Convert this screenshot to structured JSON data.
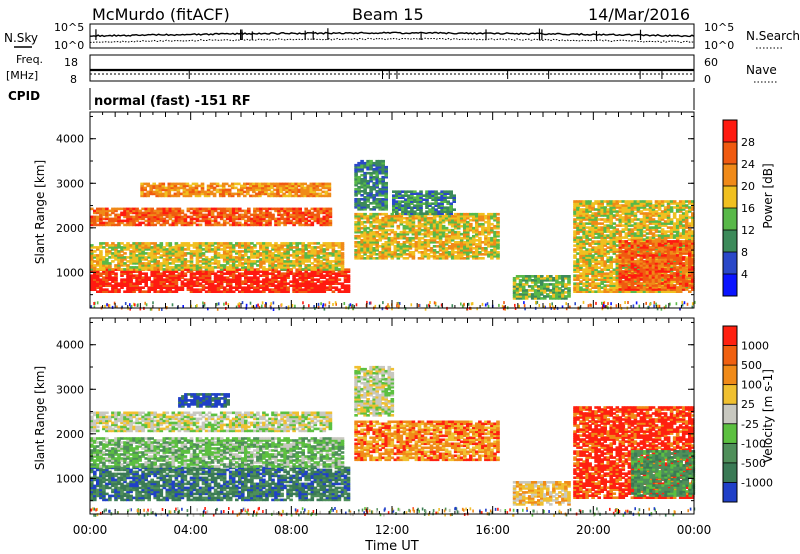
{
  "header": {
    "station": "McMurdo (fitACF)",
    "beam": "Beam 15",
    "date": "14/Mar/2016"
  },
  "strip_labels": {
    "nsky": "N.Sky",
    "nsearch": "N.Search",
    "freq_top": "Freq.",
    "freq_unit": "[MHz]",
    "nave": "Nave",
    "cpid": "CPID",
    "cpid_value": "normal (fast) -151 RF",
    "noise_ticks_left": [
      "10^5",
      "10^0"
    ],
    "noise_ticks_right": [
      "10^5",
      "10^0"
    ],
    "freq_ticks": [
      "18",
      "8"
    ],
    "nave_ticks": [
      "60",
      "0"
    ]
  },
  "colors": {
    "power": [
      "#0a14ff",
      "#2a48c8",
      "#3c8a5a",
      "#58b848",
      "#f0c020",
      "#f08a18",
      "#f05a10",
      "#ff1a10"
    ],
    "velocity": [
      "#2040c8",
      "#3a7a55",
      "#4f8f5a",
      "#5cc040",
      "#c8c8c0",
      "#f0c030",
      "#f08a18",
      "#f06010",
      "#ff2010"
    ]
  },
  "chart_data": [
    {
      "type": "heatmap",
      "name": "power",
      "ylabel": "Slant Range [km]",
      "x_ticks": [
        "00:00",
        "04:00",
        "08:00",
        "12:00",
        "16:00",
        "20:00",
        "00:00"
      ],
      "y_ticks": [
        "1000",
        "2000",
        "3000",
        "4000"
      ],
      "ylim": [
        200,
        4600
      ],
      "xlim_hours": [
        0,
        24
      ],
      "colorbar": {
        "label": "Power [dB]",
        "ticks": [
          "4",
          "8",
          "12",
          "16",
          "20",
          "24",
          "28"
        ]
      },
      "regions": [
        {
          "t0": 0.0,
          "t1": 10.2,
          "r_low": 550,
          "r_high": 1050,
          "level": 7
        },
        {
          "t0": 0.0,
          "t1": 10.0,
          "r_low": 1050,
          "r_high": 1650,
          "level": 4
        },
        {
          "t0": 0.0,
          "t1": 9.5,
          "r_low": 2050,
          "r_high": 2450,
          "level": 6
        },
        {
          "t0": 2.0,
          "t1": 9.5,
          "r_low": 2700,
          "r_high": 3000,
          "level": 5
        },
        {
          "t0": 10.5,
          "t1": 16.2,
          "r_low": 1300,
          "r_high": 2300,
          "level": 4
        },
        {
          "t0": 10.5,
          "t1": 11.8,
          "r_low": 2400,
          "r_high": 3500,
          "level": 2
        },
        {
          "t0": 12.0,
          "t1": 14.5,
          "r_low": 2300,
          "r_high": 2800,
          "level": 2
        },
        {
          "t0": 16.8,
          "t1": 19.0,
          "r_low": 400,
          "r_high": 900,
          "level": 3
        },
        {
          "t0": 19.2,
          "t1": 24.0,
          "r_low": 550,
          "r_high": 2600,
          "level": 4
        },
        {
          "t0": 21.0,
          "t1": 24.0,
          "r_low": 600,
          "r_high": 1700,
          "level": 6
        }
      ]
    },
    {
      "type": "heatmap",
      "name": "velocity",
      "xlabel": "Time UT",
      "ylabel": "Slant Range [km]",
      "x_ticks": [
        "00:00",
        "04:00",
        "08:00",
        "12:00",
        "16:00",
        "20:00",
        "00:00"
      ],
      "y_ticks": [
        "1000",
        "2000",
        "3000",
        "4000"
      ],
      "ylim": [
        200,
        4600
      ],
      "xlim_hours": [
        0,
        24
      ],
      "colorbar": {
        "label": "Velocity [m s-1]",
        "ticks": [
          "1000",
          "500",
          "100",
          "25",
          "-25",
          "-100",
          "-500",
          "-1000"
        ]
      },
      "regions": [
        {
          "t0": 0.0,
          "t1": 10.2,
          "r_low": 500,
          "r_high": 1250,
          "level": 1
        },
        {
          "t0": 0.0,
          "t1": 10.0,
          "r_low": 1250,
          "r_high": 1900,
          "level": 3
        },
        {
          "t0": 0.0,
          "t1": 9.5,
          "r_low": 2050,
          "r_high": 2500,
          "level": 4
        },
        {
          "t0": 3.5,
          "t1": 5.5,
          "r_low": 2600,
          "r_high": 2900,
          "level": 0
        },
        {
          "t0": 10.5,
          "t1": 16.2,
          "r_low": 1400,
          "r_high": 2300,
          "level": 6
        },
        {
          "t0": 10.5,
          "t1": 12.0,
          "r_low": 2400,
          "r_high": 3500,
          "level": 4
        },
        {
          "t0": 16.8,
          "t1": 19.0,
          "r_low": 400,
          "r_high": 900,
          "level": 5
        },
        {
          "t0": 19.2,
          "t1": 24.0,
          "r_low": 550,
          "r_high": 2600,
          "level": 7
        },
        {
          "t0": 21.5,
          "t1": 24.0,
          "r_low": 600,
          "r_high": 1600,
          "level": 2
        }
      ]
    }
  ]
}
